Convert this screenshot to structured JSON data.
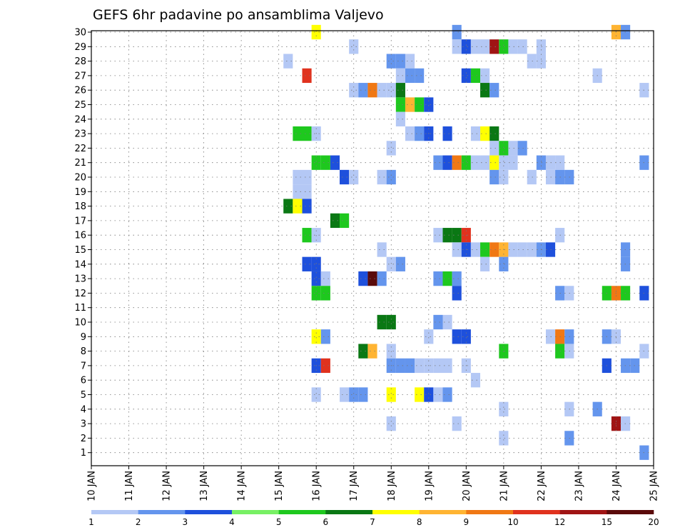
{
  "chart_data": {
    "type": "heatmap",
    "title": "GEFS 6hr padavine po ansamblima Valjevo",
    "y_members": [
      1,
      30
    ],
    "y_ticks": [
      "1",
      "2",
      "3",
      "4",
      "5",
      "6",
      "7",
      "8",
      "9",
      "10",
      "11",
      "12",
      "13",
      "14",
      "15",
      "16",
      "17",
      "18",
      "19",
      "20",
      "21",
      "22",
      "23",
      "24",
      "25",
      "26",
      "27",
      "28",
      "29",
      "30"
    ],
    "x_range": [
      10.0,
      25.0
    ],
    "x_ticks": [
      "10 JAN",
      "11 JAN",
      "12 JAN",
      "13 JAN",
      "14 JAN",
      "15 JAN",
      "16 JAN",
      "17 JAN",
      "18 JAN",
      "19 JAN",
      "20 JAN",
      "21 JAN",
      "22 JAN",
      "23 JAN",
      "24 JAN",
      "25 JAN"
    ],
    "grid": true,
    "colorbar": {
      "labels": [
        "1",
        "2",
        "3",
        "4",
        "5",
        "6",
        "7",
        "8",
        "9",
        "10",
        "12",
        "15",
        "20"
      ],
      "colors": [
        "#b4c8f5",
        "#6495ed",
        "#1e50dc",
        "#78f064",
        "#1ec81e",
        "#0a7814",
        "#ffff00",
        "#ffb432",
        "#f07814",
        "#e0321e",
        "#a01414",
        "#5a0a0a"
      ]
    },
    "cells": [
      [
        30,
        16.0,
        7
      ],
      [
        30,
        19.75,
        2
      ],
      [
        30,
        24.0,
        8
      ],
      [
        30,
        24.25,
        2
      ],
      [
        29,
        17.0,
        1
      ],
      [
        29,
        19.75,
        1
      ],
      [
        29,
        20.0,
        3
      ],
      [
        29,
        20.25,
        1
      ],
      [
        29,
        20.5,
        1
      ],
      [
        29,
        20.75,
        11
      ],
      [
        29,
        21.0,
        5
      ],
      [
        29,
        21.25,
        1
      ],
      [
        29,
        21.5,
        1
      ],
      [
        29,
        22.0,
        1
      ],
      [
        28,
        15.25,
        1
      ],
      [
        28,
        18.0,
        2
      ],
      [
        28,
        18.25,
        2
      ],
      [
        28,
        18.5,
        1
      ],
      [
        28,
        21.75,
        1
      ],
      [
        28,
        22.0,
        1
      ],
      [
        27,
        15.75,
        10
      ],
      [
        27,
        18.25,
        1
      ],
      [
        27,
        18.5,
        2
      ],
      [
        27,
        18.75,
        2
      ],
      [
        27,
        20.0,
        3
      ],
      [
        27,
        20.25,
        5
      ],
      [
        27,
        20.5,
        1
      ],
      [
        27,
        23.5,
        1
      ],
      [
        26,
        17.0,
        1
      ],
      [
        26,
        17.25,
        2
      ],
      [
        26,
        17.5,
        9
      ],
      [
        26,
        17.75,
        1
      ],
      [
        26,
        18.0,
        1
      ],
      [
        26,
        18.25,
        6
      ],
      [
        26,
        20.5,
        6
      ],
      [
        26,
        20.75,
        2
      ],
      [
        26,
        24.75,
        1
      ],
      [
        25,
        18.25,
        5
      ],
      [
        25,
        18.5,
        8
      ],
      [
        25,
        18.75,
        5
      ],
      [
        25,
        19.0,
        3
      ],
      [
        24,
        18.25,
        1
      ],
      [
        23,
        15.5,
        5
      ],
      [
        23,
        15.75,
        5
      ],
      [
        23,
        16.0,
        1
      ],
      [
        23,
        18.5,
        1
      ],
      [
        23,
        18.75,
        2
      ],
      [
        23,
        19.0,
        3
      ],
      [
        23,
        19.5,
        3
      ],
      [
        23,
        20.25,
        1
      ],
      [
        23,
        20.5,
        7
      ],
      [
        23,
        20.75,
        6
      ],
      [
        22,
        18.0,
        1
      ],
      [
        22,
        20.75,
        1
      ],
      [
        22,
        21.0,
        5
      ],
      [
        22,
        21.25,
        1
      ],
      [
        22,
        21.5,
        2
      ],
      [
        21,
        16.0,
        5
      ],
      [
        21,
        16.25,
        5
      ],
      [
        21,
        16.5,
        3
      ],
      [
        21,
        19.25,
        2
      ],
      [
        21,
        19.5,
        3
      ],
      [
        21,
        19.75,
        9
      ],
      [
        21,
        20.0,
        5
      ],
      [
        21,
        20.25,
        1
      ],
      [
        21,
        20.5,
        1
      ],
      [
        21,
        20.75,
        7
      ],
      [
        21,
        21.0,
        1
      ],
      [
        21,
        21.25,
        1
      ],
      [
        21,
        22.0,
        2
      ],
      [
        21,
        22.25,
        1
      ],
      [
        21,
        22.5,
        1
      ],
      [
        21,
        24.75,
        2
      ],
      [
        20,
        15.5,
        1
      ],
      [
        20,
        15.75,
        1
      ],
      [
        20,
        16.75,
        3
      ],
      [
        20,
        17.0,
        1
      ],
      [
        20,
        17.75,
        1
      ],
      [
        20,
        18.0,
        2
      ],
      [
        20,
        20.75,
        2
      ],
      [
        20,
        21.0,
        1
      ],
      [
        20,
        21.75,
        1
      ],
      [
        20,
        22.25,
        1
      ],
      [
        20,
        22.5,
        2
      ],
      [
        20,
        22.75,
        2
      ],
      [
        19,
        15.5,
        1
      ],
      [
        19,
        15.75,
        1
      ],
      [
        18,
        15.25,
        6
      ],
      [
        18,
        15.5,
        7
      ],
      [
        18,
        15.75,
        3
      ],
      [
        17,
        16.5,
        6
      ],
      [
        17,
        16.75,
        5
      ],
      [
        16,
        15.75,
        5
      ],
      [
        16,
        16.0,
        1
      ],
      [
        16,
        19.25,
        1
      ],
      [
        16,
        19.5,
        6
      ],
      [
        16,
        19.75,
        6
      ],
      [
        16,
        20.0,
        10
      ],
      [
        16,
        22.5,
        1
      ],
      [
        15,
        17.75,
        1
      ],
      [
        15,
        19.75,
        1
      ],
      [
        15,
        20.0,
        3
      ],
      [
        15,
        20.25,
        1
      ],
      [
        15,
        20.5,
        5
      ],
      [
        15,
        20.75,
        9
      ],
      [
        15,
        21.0,
        8
      ],
      [
        15,
        21.25,
        1
      ],
      [
        15,
        21.5,
        1
      ],
      [
        15,
        21.75,
        1
      ],
      [
        15,
        22.0,
        2
      ],
      [
        15,
        22.25,
        3
      ],
      [
        15,
        24.25,
        2
      ],
      [
        14,
        15.75,
        3
      ],
      [
        14,
        16.0,
        3
      ],
      [
        14,
        18.0,
        1
      ],
      [
        14,
        18.25,
        2
      ],
      [
        14,
        20.5,
        1
      ],
      [
        14,
        21.0,
        2
      ],
      [
        14,
        24.25,
        2
      ],
      [
        13,
        16.0,
        3
      ],
      [
        13,
        16.25,
        1
      ],
      [
        13,
        17.25,
        3
      ],
      [
        13,
        17.5,
        12
      ],
      [
        13,
        17.75,
        2
      ],
      [
        13,
        19.25,
        2
      ],
      [
        13,
        19.5,
        5
      ],
      [
        13,
        19.75,
        2
      ],
      [
        12,
        16.0,
        5
      ],
      [
        12,
        16.25,
        5
      ],
      [
        12,
        19.75,
        3
      ],
      [
        12,
        22.5,
        2
      ],
      [
        12,
        22.75,
        1
      ],
      [
        12,
        23.75,
        5
      ],
      [
        12,
        24.0,
        9
      ],
      [
        12,
        24.25,
        5
      ],
      [
        12,
        24.75,
        3
      ],
      [
        10,
        17.75,
        6
      ],
      [
        10,
        18.0,
        6
      ],
      [
        10,
        19.25,
        2
      ],
      [
        10,
        19.5,
        1
      ],
      [
        9,
        16.0,
        7
      ],
      [
        9,
        16.25,
        2
      ],
      [
        9,
        19.0,
        1
      ],
      [
        9,
        19.75,
        3
      ],
      [
        9,
        20.0,
        3
      ],
      [
        9,
        22.25,
        1
      ],
      [
        9,
        22.5,
        9
      ],
      [
        9,
        22.75,
        2
      ],
      [
        9,
        23.75,
        2
      ],
      [
        9,
        24.0,
        1
      ],
      [
        8,
        17.25,
        6
      ],
      [
        8,
        17.5,
        8
      ],
      [
        8,
        18.0,
        1
      ],
      [
        8,
        21.0,
        5
      ],
      [
        8,
        22.5,
        5
      ],
      [
        8,
        22.75,
        1
      ],
      [
        8,
        24.75,
        1
      ],
      [
        7,
        16.0,
        3
      ],
      [
        7,
        16.25,
        10
      ],
      [
        7,
        18.0,
        2
      ],
      [
        7,
        18.25,
        2
      ],
      [
        7,
        18.5,
        2
      ],
      [
        7,
        18.75,
        1
      ],
      [
        7,
        19.0,
        1
      ],
      [
        7,
        19.25,
        1
      ],
      [
        7,
        19.5,
        1
      ],
      [
        7,
        20.0,
        1
      ],
      [
        7,
        23.75,
        3
      ],
      [
        7,
        24.25,
        2
      ],
      [
        7,
        24.5,
        2
      ],
      [
        6,
        20.25,
        1
      ],
      [
        5,
        16.0,
        1
      ],
      [
        5,
        16.75,
        1
      ],
      [
        5,
        17.0,
        2
      ],
      [
        5,
        17.25,
        2
      ],
      [
        5,
        18.0,
        7
      ],
      [
        5,
        18.75,
        7
      ],
      [
        5,
        19.0,
        3
      ],
      [
        5,
        19.25,
        1
      ],
      [
        5,
        19.5,
        2
      ],
      [
        4,
        21.0,
        1
      ],
      [
        4,
        22.75,
        1
      ],
      [
        4,
        23.5,
        2
      ],
      [
        3,
        18.0,
        1
      ],
      [
        3,
        19.75,
        1
      ],
      [
        3,
        24.0,
        11
      ],
      [
        3,
        24.25,
        1
      ],
      [
        2,
        21.0,
        1
      ],
      [
        2,
        22.75,
        2
      ],
      [
        1,
        24.75,
        2
      ]
    ]
  }
}
